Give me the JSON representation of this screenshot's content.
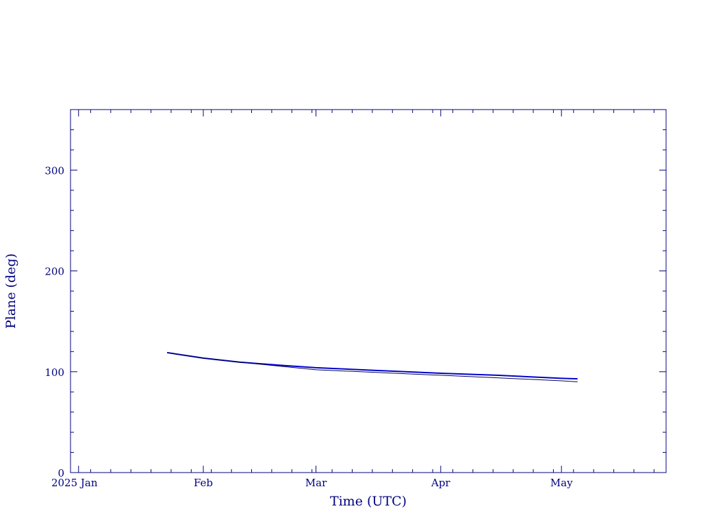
{
  "chart_data": {
    "type": "line",
    "title": "",
    "xlabel": "Time (UTC)",
    "ylabel": "Plane (deg)",
    "xlim": [
      "2024-12-30",
      "2025-05-27"
    ],
    "ylim": [
      0,
      360
    ],
    "x_tick_labels": [
      {
        "date": "2025-01-01",
        "label": "2025 Jan"
      },
      {
        "date": "2025-02-01",
        "label": "Feb"
      },
      {
        "date": "2025-03-01",
        "label": "Mar"
      },
      {
        "date": "2025-04-01",
        "label": "Apr"
      },
      {
        "date": "2025-05-01",
        "label": "May"
      }
    ],
    "y_tick_labels": [
      {
        "value": 0,
        "label": "0"
      },
      {
        "value": 100,
        "label": "100"
      },
      {
        "value": 200,
        "label": "200"
      },
      {
        "value": 300,
        "label": "300"
      }
    ],
    "grid": false,
    "legend": "none",
    "colors": {
      "frame": "#000080",
      "text": "#000080",
      "series_a": "#0000cc",
      "series_b": "#000050"
    },
    "series": [
      {
        "x": [
          "2025-01-23",
          "2025-02-01",
          "2025-02-10",
          "2025-02-20",
          "2025-03-01",
          "2025-03-15",
          "2025-04-01",
          "2025-04-15",
          "2025-05-01",
          "2025-05-05"
        ],
        "values": [
          119,
          113.5,
          109.5,
          106.5,
          104,
          101.5,
          98.5,
          96.5,
          93.5,
          93
        ],
        "color": "#0000cc",
        "width": 2
      },
      {
        "x": [
          "2025-01-23",
          "2025-02-01",
          "2025-02-10",
          "2025-02-20",
          "2025-03-01",
          "2025-03-15",
          "2025-04-01",
          "2025-04-15",
          "2025-05-01",
          "2025-05-05"
        ],
        "values": [
          119,
          113.5,
          109.5,
          105.5,
          102,
          99.5,
          96.5,
          94,
          91,
          90
        ],
        "color": "#000050",
        "width": 1
      }
    ]
  }
}
